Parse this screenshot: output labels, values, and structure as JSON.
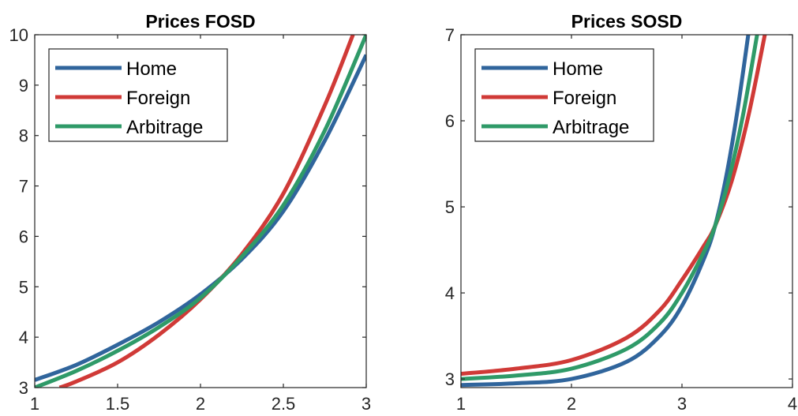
{
  "chart_data": [
    {
      "type": "line",
      "title": "Prices FOSD",
      "xlim": [
        1,
        3
      ],
      "ylim": [
        3,
        10
      ],
      "xticks": [
        "1",
        "1.5",
        "2",
        "2.5",
        "3"
      ],
      "yticks": [
        "3",
        "4",
        "5",
        "6",
        "7",
        "8",
        "9",
        "10"
      ],
      "legend_position": "top-left",
      "series": [
        {
          "name": "Home",
          "color": "#30659c",
          "x": [
            1.0,
            1.25,
            1.5,
            1.75,
            2.0,
            2.25,
            2.5,
            2.75,
            3.0
          ],
          "y": [
            3.15,
            3.45,
            3.85,
            4.3,
            4.85,
            5.55,
            6.5,
            7.9,
            9.6
          ]
        },
        {
          "name": "Foreign",
          "color": "#d03a37",
          "x": [
            1.15,
            1.25,
            1.5,
            1.75,
            2.0,
            2.25,
            2.5,
            2.75,
            2.92
          ],
          "y": [
            3.0,
            3.12,
            3.5,
            4.05,
            4.75,
            5.65,
            6.85,
            8.6,
            10.0
          ]
        },
        {
          "name": "Arbitrage",
          "color": "#2f9a68",
          "x": [
            1.0,
            1.25,
            1.5,
            1.75,
            2.0,
            2.25,
            2.5,
            2.75,
            3.0
          ],
          "y": [
            3.0,
            3.33,
            3.73,
            4.2,
            4.78,
            5.6,
            6.62,
            8.1,
            10.0
          ]
        }
      ]
    },
    {
      "type": "line",
      "title": "Prices SOSD",
      "xlim": [
        1,
        4
      ],
      "ylim": [
        2.9,
        7
      ],
      "xticks": [
        "1",
        "2",
        "3",
        "4"
      ],
      "yticks": [
        "3",
        "4",
        "5",
        "6",
        "7"
      ],
      "legend_position": "top-left",
      "series": [
        {
          "name": "Home",
          "color": "#30659c",
          "x": [
            1.0,
            1.5,
            2.0,
            2.5,
            2.8,
            3.0,
            3.2,
            3.3,
            3.4,
            3.5,
            3.6
          ],
          "y": [
            2.93,
            2.95,
            3.0,
            3.2,
            3.5,
            3.85,
            4.4,
            4.78,
            5.35,
            6.1,
            7.0
          ]
        },
        {
          "name": "Foreign",
          "color": "#d03a37",
          "x": [
            1.0,
            1.5,
            2.0,
            2.5,
            2.8,
            3.0,
            3.2,
            3.3,
            3.45,
            3.6,
            3.75
          ],
          "y": [
            3.06,
            3.12,
            3.22,
            3.48,
            3.8,
            4.15,
            4.55,
            4.78,
            5.3,
            6.05,
            7.0
          ]
        },
        {
          "name": "Arbitrage",
          "color": "#2f9a68",
          "x": [
            1.0,
            1.5,
            2.0,
            2.5,
            2.8,
            3.0,
            3.2,
            3.3,
            3.42,
            3.55,
            3.68
          ],
          "y": [
            3.0,
            3.04,
            3.12,
            3.35,
            3.65,
            4.0,
            4.48,
            4.78,
            5.3,
            6.05,
            7.0
          ]
        }
      ]
    }
  ]
}
